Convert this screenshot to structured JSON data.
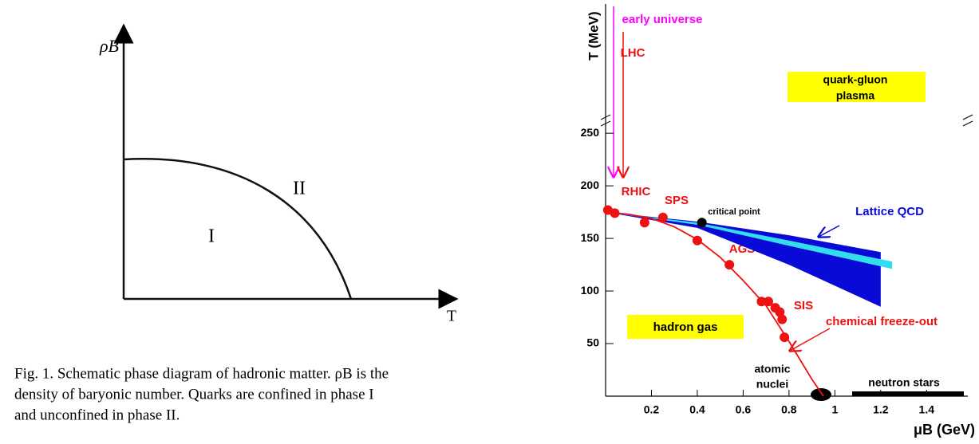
{
  "chart_data": [
    {
      "type": "schematic",
      "y_label": "ρB",
      "x_label": "T",
      "region_labels": [
        "I",
        "II"
      ],
      "caption": [
        "Fig. 1. Schematic phase diagram of hadronic matter. ρB is the",
        "density of baryonic number. Quarks are confined in phase I",
        "and unconfined in phase II."
      ]
    },
    {
      "type": "scatter",
      "y_label": "T (MeV)",
      "x_label": "μB (GeV)",
      "xlim": [
        0,
        1.58
      ],
      "ylim": [
        0,
        263
      ],
      "xticks": [
        0.2,
        0.4,
        0.6,
        0.8,
        1,
        1.2,
        1.4
      ],
      "yticks": [
        50,
        100,
        150,
        200,
        250
      ],
      "series": [
        {
          "name": "Lattice QCD",
          "type": "area",
          "color": "#0a0ad6",
          "x": [
            0,
            0.4,
            0.8,
            1.2
          ],
          "upper": [
            175,
            166,
            153,
            137
          ],
          "lower": [
            175,
            160,
            125,
            85
          ]
        },
        {
          "type": "area",
          "color": "#33ddee",
          "x": [
            0,
            0.4,
            0.8,
            1.25
          ],
          "upper": [
            175,
            165,
            148,
            128
          ],
          "lower": [
            175,
            163,
            143,
            121
          ]
        },
        {
          "name": "chemical freeze-out",
          "type": "line",
          "color": "#ee1111",
          "x": [
            0,
            0.1,
            0.2,
            0.3,
            0.4,
            0.5,
            0.6,
            0.7,
            0.8,
            0.9,
            0.95
          ],
          "values": [
            175,
            173,
            169,
            161,
            149,
            132,
            110,
            86,
            52,
            16,
            0
          ]
        },
        {
          "type": "scatter",
          "color": "#ee1111",
          "x": [
            0.01,
            0.04,
            0.17,
            0.25,
            0.4,
            0.54,
            0.68,
            0.71,
            0.74,
            0.76,
            0.77,
            0.78
          ],
          "values": [
            177,
            174,
            165,
            170,
            148,
            125,
            90,
            90,
            84,
            80,
            73,
            56
          ]
        },
        {
          "name": "critical point",
          "type": "scatter",
          "color": "#000000",
          "x": [
            0.42
          ],
          "values": [
            165
          ]
        }
      ],
      "annotations": {
        "early_universe": "early universe",
        "lhc": "LHC",
        "rhic": "RHIC",
        "sps": "SPS",
        "ags": "AGS",
        "sis": "SIS",
        "qgp": [
          "quark-gluon",
          "plasma"
        ],
        "hadron_gas": "hadron gas",
        "atomic_nuclei": [
          "atomic",
          "nuclei"
        ],
        "neutron_stars": "neutron stars"
      }
    }
  ]
}
